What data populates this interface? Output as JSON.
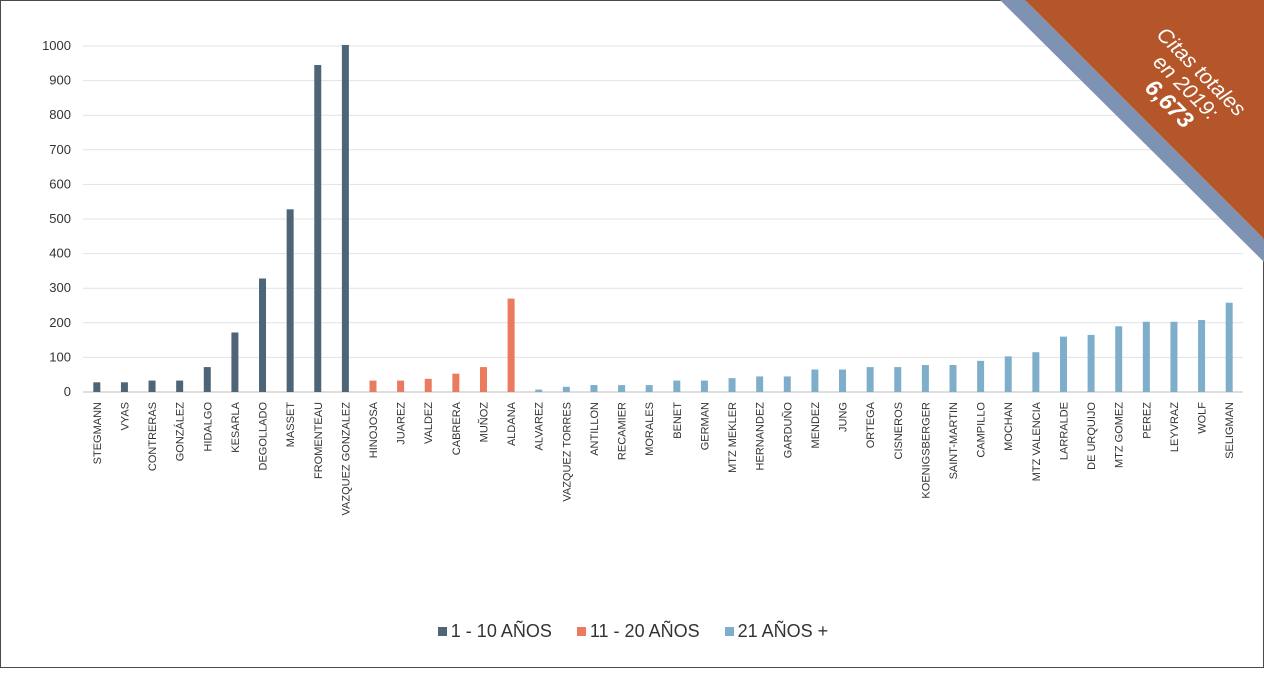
{
  "colors": {
    "group1": "#4e6577",
    "group2": "#ea7b5e",
    "group3": "#7faecb",
    "ribbon": "#b4562a",
    "ribbon_back": "#7e93b4",
    "grid": "#e2e2e2"
  },
  "legend": {
    "items": [
      "1 - 10 AÑOS",
      "11 - 20 AÑOS",
      "21 AÑOS +"
    ]
  },
  "ribbon": {
    "line1": "Citas totales",
    "line2": "en 2019:",
    "line3": "6,673"
  },
  "chart_data": {
    "type": "bar",
    "title": "",
    "xlabel": "",
    "ylabel": "",
    "ylim": [
      0,
      1000
    ],
    "yticks": [
      "0",
      "100",
      "200",
      "300",
      "400",
      "500",
      "600",
      "700",
      "800",
      "900",
      "1000"
    ],
    "grid": true,
    "legend_position": "bottom",
    "categories": [
      "STEGMANN",
      "VYAS",
      "CONTRERAS",
      "GONZÁLEZ",
      "HIDALGO",
      "KESARLA",
      "DEGOLLADO",
      "MASSET",
      "FROMENTEAU",
      "VAZQUEZ GONZALEZ",
      "HINOJOSA",
      "JUAREZ",
      "VALDEZ",
      "CABRERA",
      "MUÑOZ",
      "ALDANA",
      "ALVAREZ",
      "VAZQUEZ TORRES",
      "ANTILLON",
      "RECAMIER",
      "MORALES",
      "BENET",
      "GERMAN",
      "MTZ MEKLER",
      "HERNANDEZ",
      "GARDUÑO",
      "MENDEZ",
      "JUNG",
      "ORTEGA",
      "CISNEROS",
      "KOENIGSBERGER",
      "SAINT-MARTIN",
      "CAMPILLO",
      "MOCHAN",
      "MTZ VALENCIA",
      "LARRALDE",
      "DE URQUIJO",
      "MTZ GOMEZ",
      "PEREZ",
      "LEYVRAZ",
      "WOLF",
      "SELIGMAN"
    ],
    "groups": [
      0,
      0,
      0,
      0,
      0,
      0,
      0,
      0,
      0,
      0,
      1,
      1,
      1,
      1,
      1,
      1,
      2,
      2,
      2,
      2,
      2,
      2,
      2,
      2,
      2,
      2,
      2,
      2,
      2,
      2,
      2,
      2,
      2,
      2,
      2,
      2,
      2,
      2,
      2,
      2,
      2,
      2
    ],
    "values": [
      28,
      28,
      33,
      33,
      72,
      172,
      328,
      528,
      945,
      1003,
      33,
      33,
      38,
      53,
      72,
      270,
      7,
      15,
      20,
      20,
      20,
      33,
      33,
      40,
      45,
      45,
      65,
      65,
      72,
      72,
      78,
      78,
      90,
      103,
      115,
      160,
      165,
      190,
      203,
      203,
      208,
      258
    ]
  }
}
